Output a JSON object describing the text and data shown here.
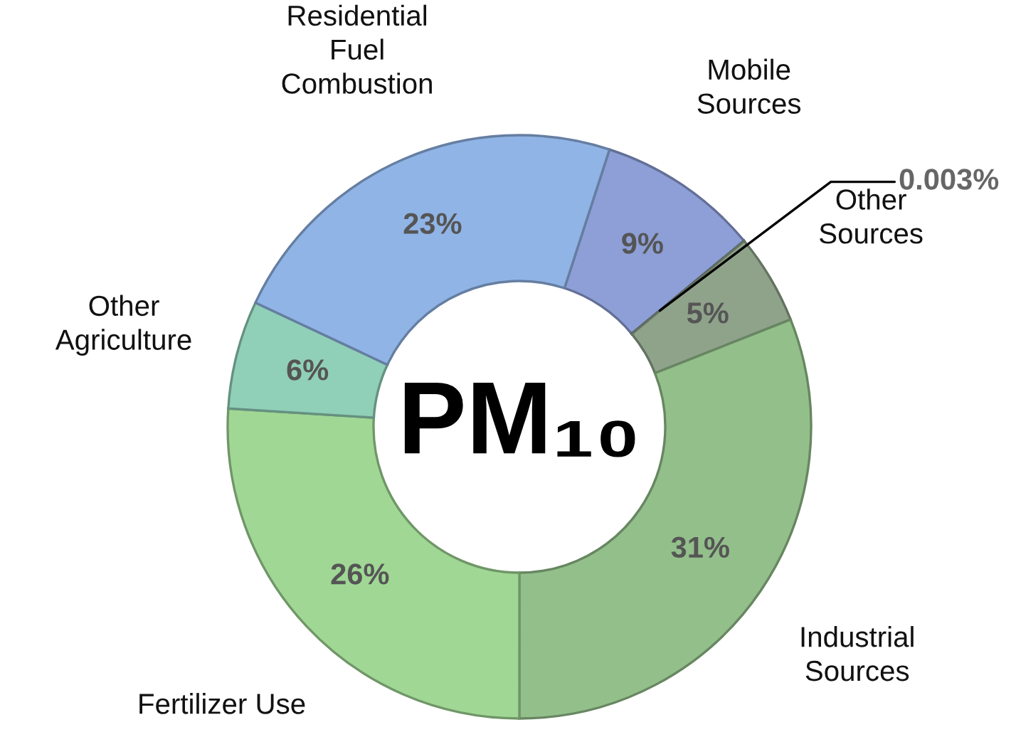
{
  "chart_data": {
    "type": "donut",
    "title": "PM₁₀",
    "categories": [
      "Mobile\nSources",
      null,
      "Other\nSources",
      "Industrial\nSources",
      "Fertilizer Use",
      "Other\nAgriculture",
      "Residential\nFuel\nCombustion"
    ],
    "values": [
      9,
      0.003,
      5,
      31,
      26,
      6,
      23
    ],
    "value_labels": [
      "9%",
      "0.003%",
      "5%",
      "31%",
      "26%",
      "6%",
      "23%"
    ],
    "colors": [
      "#8d9fd6",
      "#222222",
      "#8fa38b",
      "#93bf8b",
      "#a0d795",
      "#90cfb8",
      "#90b4e6"
    ],
    "legend": false
  }
}
